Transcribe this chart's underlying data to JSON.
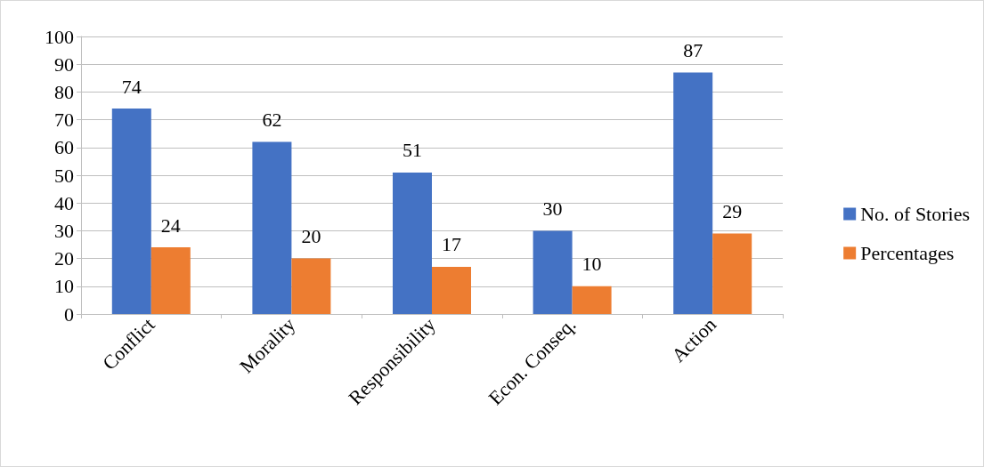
{
  "chart_data": {
    "type": "bar",
    "categories": [
      "Conflict",
      "Morality",
      "Responsibility",
      "Econ. Conseq.",
      "Action"
    ],
    "series": [
      {
        "name": "No. of Stories",
        "color": "#4472c4",
        "values": [
          74,
          62,
          51,
          30,
          87
        ]
      },
      {
        "name": "Percentages",
        "color": "#ed7d31",
        "values": [
          24,
          20,
          17,
          10,
          29
        ]
      }
    ],
    "ylim": [
      0,
      100
    ],
    "yticks": [
      0,
      10,
      20,
      30,
      40,
      50,
      60,
      70,
      80,
      90,
      100
    ],
    "grid": "y",
    "legend": "right",
    "data_labels": true
  }
}
